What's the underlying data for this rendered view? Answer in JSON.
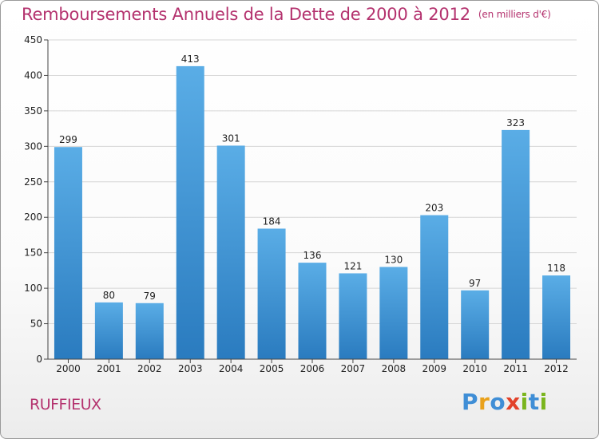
{
  "title": "Remboursements Annuels de la Dette de 2000 à 2012",
  "title_unit": "(en milliers d'€)",
  "town": "RUFFIEUX",
  "logo": {
    "text": "Proxiti",
    "letters": [
      {
        "ch": "P",
        "color": "#3f8ed6"
      },
      {
        "ch": "r",
        "color": "#e9a11b"
      },
      {
        "ch": "o",
        "color": "#3f8ed6"
      },
      {
        "ch": "x",
        "color": "#e2422a"
      },
      {
        "ch": "i",
        "color": "#7ab51d"
      },
      {
        "ch": "t",
        "color": "#3f8ed6"
      },
      {
        "ch": "i",
        "color": "#7ab51d"
      }
    ]
  },
  "colors": {
    "title": "#b4326e",
    "bar_top": "#5aade6",
    "bar_bottom": "#2a7bbf",
    "grid": "#d6d6d6",
    "axis": "#444444"
  },
  "chart_data": {
    "type": "bar",
    "title": "Remboursements Annuels de la Dette de 2000 à 2012",
    "categories": [
      "2000",
      "2001",
      "2002",
      "2003",
      "2004",
      "2005",
      "2006",
      "2007",
      "2008",
      "2009",
      "2010",
      "2011",
      "2012"
    ],
    "values": [
      299,
      80,
      79,
      413,
      301,
      184,
      136,
      121,
      130,
      203,
      97,
      323,
      118
    ],
    "ylim": [
      0,
      450
    ],
    "yticks": [
      0,
      50,
      100,
      150,
      200,
      250,
      300,
      350,
      400,
      450
    ],
    "grid": true,
    "xlabel": "",
    "ylabel": ""
  }
}
